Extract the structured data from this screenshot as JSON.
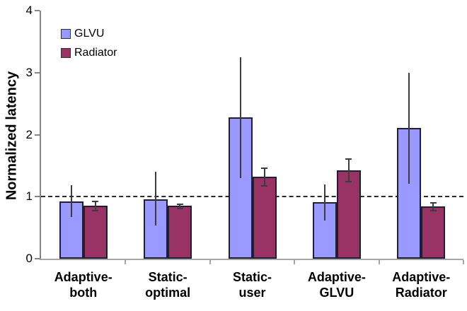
{
  "chart_data": {
    "type": "bar",
    "title": "",
    "ylabel": "Normalized latency",
    "xlabel": "",
    "ylim": [
      0,
      4
    ],
    "yticks": [
      "0",
      "1",
      "2",
      "3",
      "4"
    ],
    "grid": false,
    "legend_position": "top-left-inside",
    "reference_line": {
      "value": 1.0,
      "style": "dashed",
      "color": "#2b2b2b"
    },
    "axis_color": "#848484",
    "categories": [
      {
        "line1": "Adaptive-",
        "line2": "both"
      },
      {
        "line1": "Static-",
        "line2": "optimal"
      },
      {
        "line1": "Static-",
        "line2": "user"
      },
      {
        "line1": "Adaptive-",
        "line2": "GLVU"
      },
      {
        "line1": "Adaptive-",
        "line2": "Radiator"
      }
    ],
    "series": [
      {
        "name": "GLVU",
        "color": "#9999FF",
        "border_color": "#1f1f33",
        "values": [
          0.92,
          0.96,
          2.28,
          0.91,
          2.11
        ],
        "error_low": [
          0.67,
          0.53,
          1.3,
          0.61,
          1.21
        ],
        "error_high": [
          1.19,
          1.4,
          3.25,
          1.2,
          3.0
        ],
        "error_caps": false
      },
      {
        "name": "Radiator",
        "color": "#993366",
        "border_color": "#1f1f33",
        "values": [
          0.86,
          0.85,
          1.32,
          1.43,
          0.84
        ],
        "error_low": [
          0.78,
          0.81,
          1.17,
          1.24,
          0.77
        ],
        "error_high": [
          0.92,
          0.88,
          1.46,
          1.61,
          0.9
        ],
        "error_caps": true
      }
    ]
  }
}
